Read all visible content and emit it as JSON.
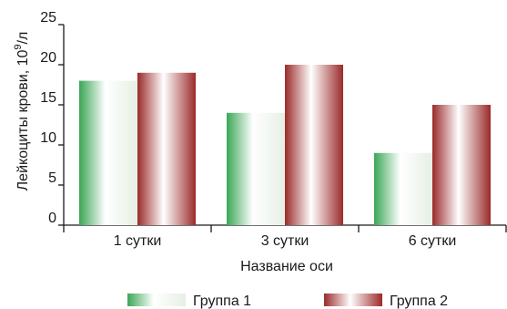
{
  "chart_data": {
    "type": "bar",
    "categories": [
      "1 сутки",
      "3 сутки",
      "6 сутки"
    ],
    "series": [
      {
        "name": "Группа 1",
        "values": [
          18,
          14,
          9
        ],
        "color": "#3aa655"
      },
      {
        "name": "Группа 2",
        "values": [
          19,
          20,
          15
        ],
        "color": "#9b2a2a"
      }
    ],
    "yticks": [
      "0",
      "5",
      "10",
      "15",
      "20",
      "25"
    ],
    "ylim": [
      0,
      25
    ],
    "xlabel": "Название оси",
    "ylabel": "Лейкоциты крови, 10",
    "ylabel_sup": "9",
    "ylabel_unit": "/л",
    "grid": false,
    "legend_position": "bottom"
  }
}
